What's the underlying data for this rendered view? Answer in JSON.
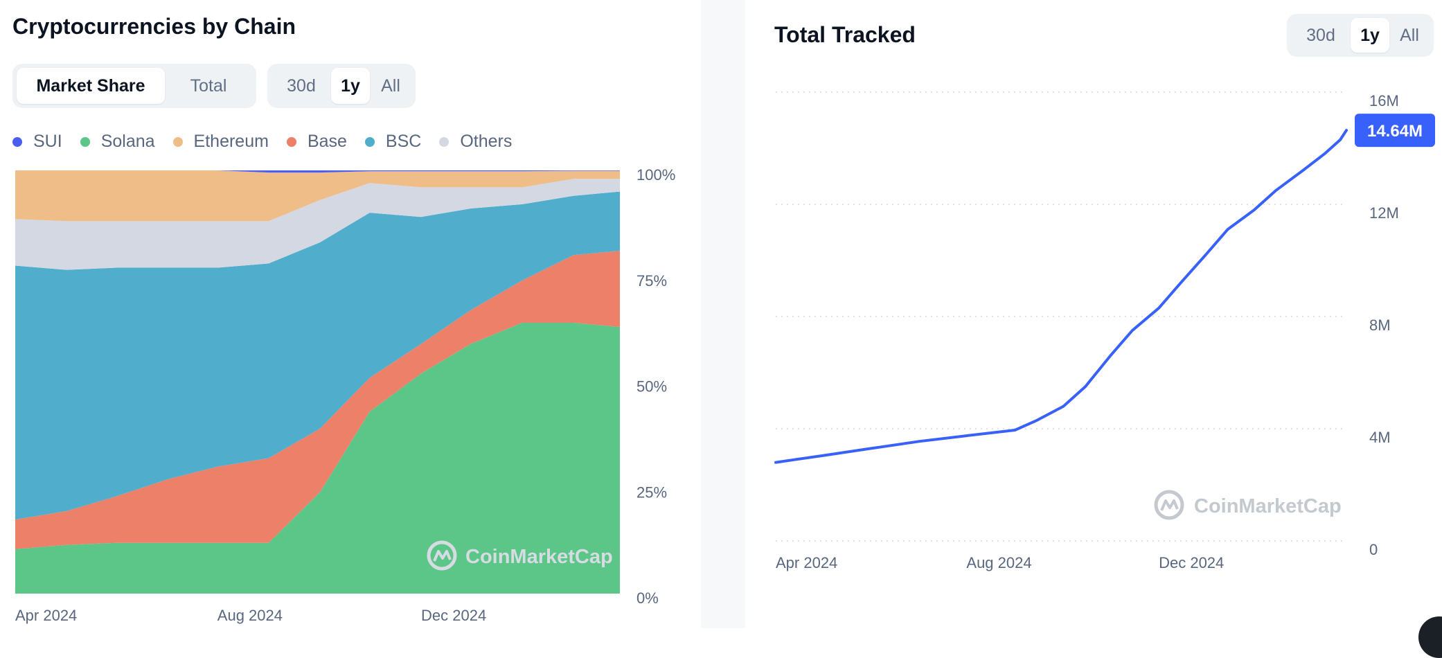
{
  "left": {
    "title": "Cryptocurrencies by Chain",
    "view_toggle": [
      {
        "label": "Market Share",
        "active": true
      },
      {
        "label": "Total",
        "active": false
      }
    ],
    "range_toggle": [
      {
        "label": "30d",
        "active": false
      },
      {
        "label": "1y",
        "active": true
      },
      {
        "label": "All",
        "active": false
      }
    ],
    "watermark": "CoinMarketCap"
  },
  "right": {
    "title": "Total Tracked",
    "range_toggle": [
      {
        "label": "30d",
        "active": false
      },
      {
        "label": "1y",
        "active": true
      },
      {
        "label": "All",
        "active": false
      }
    ],
    "current_value_label": "14.64M",
    "watermark": "CoinMarketCap"
  },
  "colors": {
    "SUI": "#4a5ef0",
    "Solana": "#5cc689",
    "Ethereum": "#efbd88",
    "Base": "#ed8068",
    "BSC": "#50aecc",
    "Others": "#d4d8e3",
    "line": "#3861fb",
    "accent": "#3861fb"
  },
  "chart_data": [
    {
      "type": "area",
      "stacked": true,
      "normalized_percent": true,
      "x": [
        "2024-03-01",
        "2024-04-01",
        "2024-05-01",
        "2024-06-01",
        "2024-07-01",
        "2024-08-01",
        "2024-09-01",
        "2024-10-01",
        "2024-11-01",
        "2024-12-01",
        "2025-01-01",
        "2025-02-01",
        "2025-03-01"
      ],
      "series": [
        {
          "name": "Solana",
          "values": [
            10.5,
            11.5,
            12,
            12,
            12,
            12,
            24,
            43,
            52,
            59,
            64,
            64,
            63
          ]
        },
        {
          "name": "Base",
          "values": [
            7,
            8,
            11,
            15,
            18,
            20,
            15,
            8,
            7,
            8,
            10,
            16,
            18
          ]
        },
        {
          "name": "BSC",
          "values": [
            60,
            57,
            54,
            50,
            47,
            46,
            44,
            39,
            30,
            24,
            18,
            14,
            14
          ]
        },
        {
          "name": "Others",
          "values": [
            11,
            11.5,
            11,
            11,
            11,
            10,
            10,
            7,
            7,
            5,
            4,
            4,
            3
          ]
        },
        {
          "name": "Ethereum",
          "values": [
            11.5,
            12,
            12,
            12,
            12,
            11.5,
            6.5,
            2.8,
            3.8,
            3.8,
            3.8,
            1.9,
            1.9
          ]
        },
        {
          "name": "SUI",
          "values": [
            0,
            0,
            0,
            0,
            0,
            0.5,
            0.5,
            0.2,
            0.2,
            0.2,
            0.2,
            0.1,
            0.1
          ]
        }
      ],
      "legend": [
        "SUI",
        "Solana",
        "Ethereum",
        "Base",
        "BSC",
        "Others"
      ],
      "legend_placement": "top-left",
      "ylim": [
        0,
        100
      ],
      "y_ticks": [
        "100%",
        "75%",
        "50%",
        "25%",
        "0%"
      ],
      "x_ticks": [
        {
          "label": "Apr 2024",
          "x": "2024-03-01"
        },
        {
          "label": "Aug 2024",
          "x": "2024-07-01"
        },
        {
          "label": "Dec 2024",
          "x": "2024-11-01"
        }
      ],
      "x_range": [
        "2024-03-01",
        "2025-03-01"
      ],
      "grid": false
    },
    {
      "type": "line",
      "x": [
        "2024-03-01",
        "2024-04-01",
        "2024-05-01",
        "2024-06-01",
        "2024-07-01",
        "2024-08-01",
        "2024-08-15",
        "2024-09-01",
        "2024-09-15",
        "2024-10-01",
        "2024-10-15",
        "2024-11-01",
        "2024-11-15",
        "2024-12-01",
        "2024-12-15",
        "2025-01-01",
        "2025-01-15",
        "2025-02-01",
        "2025-02-15",
        "2025-02-25",
        "2025-03-01"
      ],
      "series": [
        {
          "values": [
            2.8,
            3.05,
            3.3,
            3.55,
            3.75,
            3.95,
            4.3,
            4.8,
            5.5,
            6.6,
            7.5,
            8.3,
            9.2,
            10.2,
            11.1,
            11.8,
            12.5,
            13.2,
            13.8,
            14.3,
            14.64
          ]
        }
      ],
      "ylim": [
        0,
        16
      ],
      "y_ticks": [
        "16M",
        "12M",
        "8M",
        "4M",
        "0"
      ],
      "x_ticks": [
        {
          "label": "Apr 2024",
          "x": "2024-03-01"
        },
        {
          "label": "Aug 2024",
          "x": "2024-07-01"
        },
        {
          "label": "Dec 2024",
          "x": "2024-11-01"
        }
      ],
      "x_range": [
        "2024-03-01",
        "2025-03-01"
      ],
      "grid": true,
      "last_value_label": "14.64M"
    }
  ]
}
